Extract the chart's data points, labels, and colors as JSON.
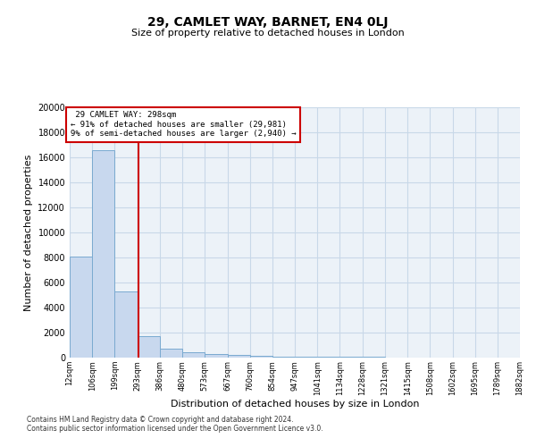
{
  "title": "29, CAMLET WAY, BARNET, EN4 0LJ",
  "subtitle": "Size of property relative to detached houses in London",
  "xlabel": "Distribution of detached houses by size in London",
  "ylabel": "Number of detached properties",
  "property_size": 298,
  "property_label": "29 CAMLET WAY: 298sqm",
  "pct_smaller": 91,
  "num_smaller": 29981,
  "pct_larger": 9,
  "num_larger": 2940,
  "bin_edges": [
    12,
    106,
    199,
    293,
    386,
    480,
    573,
    667,
    760,
    854,
    947,
    1041,
    1134,
    1228,
    1321,
    1415,
    1508,
    1602,
    1695,
    1789,
    1882
  ],
  "bin_counts": [
    8100,
    16600,
    5300,
    1700,
    700,
    400,
    300,
    200,
    130,
    100,
    80,
    60,
    50,
    40,
    30,
    25,
    20,
    15,
    10,
    8
  ],
  "bar_color": "#c8d8ee",
  "bar_edge_color": "#7aaad0",
  "vline_color": "#cc0000",
  "annotation_box_color": "#cc0000",
  "grid_color": "#c8d8e8",
  "footnote1": "Contains HM Land Registry data © Crown copyright and database right 2024.",
  "footnote2": "Contains public sector information licensed under the Open Government Licence v3.0.",
  "ylim": [
    0,
    20000
  ],
  "yticks": [
    0,
    2000,
    4000,
    6000,
    8000,
    10000,
    12000,
    14000,
    16000,
    18000,
    20000
  ],
  "tick_labels": [
    "12sqm",
    "106sqm",
    "199sqm",
    "293sqm",
    "386sqm",
    "480sqm",
    "573sqm",
    "667sqm",
    "760sqm",
    "854sqm",
    "947sqm",
    "1041sqm",
    "1134sqm",
    "1228sqm",
    "1321sqm",
    "1415sqm",
    "1508sqm",
    "1602sqm",
    "1695sqm",
    "1789sqm",
    "1882sqm"
  ]
}
